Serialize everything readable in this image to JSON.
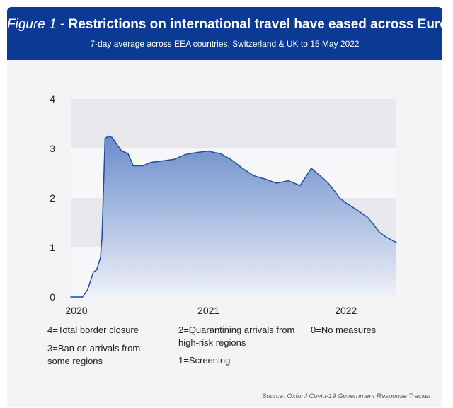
{
  "header": {
    "title_figure": "Figure 1",
    "title_text": " - Restrictions on international travel have eased across Europe",
    "subtitle": "7-day average across EEA countries, Switzerland & UK to 15 May 2022"
  },
  "legend": {
    "item_4": "4=Total border closure",
    "item_3": "3=Ban on arrivals from some regions",
    "item_2": "2=Quarantining arrivals from high-risk regions",
    "item_1": "1=Screening",
    "item_0": "0=No measures"
  },
  "source": "Source: Oxford Covid-19 Government Response Tracker",
  "colors": {
    "banner": "#0b3a94",
    "line": "#1f4e9e",
    "fill_top": "#6a8ccb",
    "fill_bottom": "#eef1f8"
  },
  "chart_data": {
    "type": "area",
    "title": "Restrictions on international travel have eased across Europe",
    "subtitle": "7-day average across EEA countries, Switzerland & UK to 15 May 2022",
    "xlabel": "",
    "ylabel": "",
    "ylim": [
      0,
      4
    ],
    "xlim": [
      "2020-01-01",
      "2022-05-15"
    ],
    "y_ticks": [
      "0",
      "1",
      "2",
      "3",
      "4"
    ],
    "x_ticks": [
      {
        "label": "2020",
        "date": "2020-01-01"
      },
      {
        "label": "2021",
        "date": "2021-01-01"
      },
      {
        "label": "2022",
        "date": "2022-01-01"
      }
    ],
    "grid_bands": true,
    "series": [
      {
        "x": [
          "2020-01-01",
          "2020-02-01",
          "2020-02-15",
          "2020-03-01",
          "2020-03-10",
          "2020-03-20",
          "2020-03-24",
          "2020-04-01",
          "2020-04-10",
          "2020-04-20",
          "2020-05-01",
          "2020-05-15",
          "2020-06-01",
          "2020-06-15",
          "2020-06-25",
          "2020-07-10",
          "2020-08-01",
          "2020-09-01",
          "2020-10-01",
          "2020-11-01",
          "2020-12-01",
          "2021-01-01",
          "2021-01-15",
          "2021-02-01",
          "2021-03-01",
          "2021-04-01",
          "2021-05-01",
          "2021-06-01",
          "2021-07-01",
          "2021-08-01",
          "2021-09-01",
          "2021-10-01",
          "2021-11-01",
          "2021-11-15",
          "2021-12-01",
          "2021-12-15",
          "2022-01-01",
          "2022-02-01",
          "2022-03-01",
          "2022-04-01",
          "2022-04-20",
          "2022-05-15"
        ],
        "values": [
          0,
          0,
          0.15,
          0.5,
          0.55,
          0.8,
          1.2,
          3.2,
          3.25,
          3.22,
          3.1,
          2.95,
          2.9,
          2.65,
          2.65,
          2.65,
          2.72,
          2.75,
          2.78,
          2.88,
          2.92,
          2.95,
          2.92,
          2.9,
          2.78,
          2.6,
          2.45,
          2.38,
          2.3,
          2.35,
          2.25,
          2.6,
          2.4,
          2.3,
          2.15,
          2.0,
          1.9,
          1.75,
          1.6,
          1.3,
          1.2,
          1.1
        ]
      }
    ]
  }
}
